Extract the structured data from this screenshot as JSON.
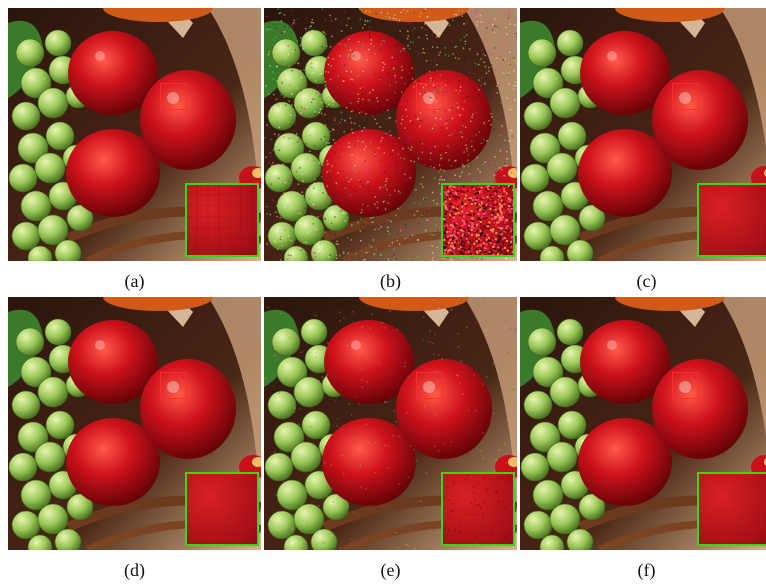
{
  "figure": {
    "panels": [
      {
        "id": "a",
        "caption": "(a)",
        "noise": "none",
        "zoom_inset": "zoom-inset"
      },
      {
        "id": "b",
        "caption": "(b)",
        "noise": "heavy",
        "zoom_inset": "zoom-inset"
      },
      {
        "id": "c",
        "caption": "(c)",
        "noise": "none",
        "zoom_inset": "zoom-inset"
      },
      {
        "id": "d",
        "caption": "(d)",
        "noise": "none",
        "zoom_inset": "zoom-inset"
      },
      {
        "id": "e",
        "caption": "(e)",
        "noise": "light",
        "zoom_inset": "zoom-inset"
      },
      {
        "id": "f",
        "caption": "(f)",
        "noise": "none",
        "zoom_inset": "zoom-inset"
      }
    ],
    "colors": {
      "roi_box": "#ff2a2a",
      "inset_border": "#3ad61e",
      "apple_red": "#c8101a",
      "grape_green": "#9cc85a",
      "basket_brown": "#3a1f12"
    }
  }
}
